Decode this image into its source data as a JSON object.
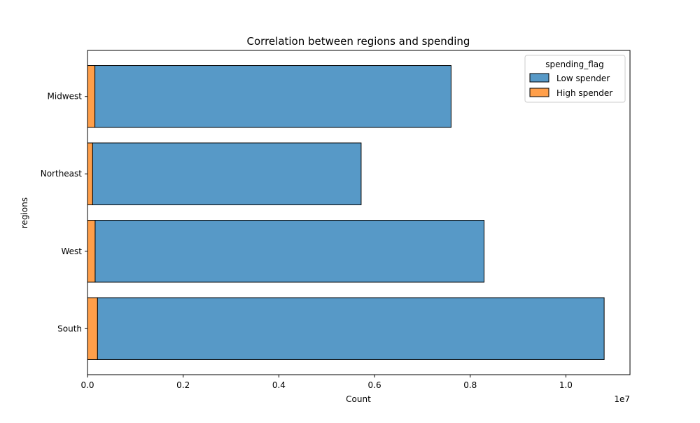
{
  "chart_data": {
    "type": "bar",
    "orientation": "horizontal",
    "stacked": true,
    "title": "Correlation between regions and spending",
    "xlabel": "Count",
    "ylabel": "regions",
    "x_scale_label": "1e7",
    "xlim": [
      0,
      11340000
    ],
    "x_ticks": [
      0,
      2000000,
      4000000,
      6000000,
      8000000,
      10000000
    ],
    "x_tick_labels": [
      "0.0",
      "0.2",
      "0.4",
      "0.6",
      "0.8",
      "1.0"
    ],
    "categories": [
      "Midwest",
      "Northeast",
      "West",
      "South"
    ],
    "series": [
      {
        "name": "High spender",
        "color": "#ff9f4a",
        "values": [
          155000,
          108000,
          160000,
          210000
        ]
      },
      {
        "name": "Low spender",
        "color": "#5799c7",
        "values": [
          7445000,
          5612000,
          8130000,
          10590000
        ]
      }
    ],
    "legend": {
      "title": "spending_flag",
      "placement": "top-right",
      "entries": [
        {
          "name": "Low spender",
          "color": "#5799c7"
        },
        {
          "name": "High spender",
          "color": "#ff9f4a"
        }
      ]
    },
    "grid": false
  }
}
